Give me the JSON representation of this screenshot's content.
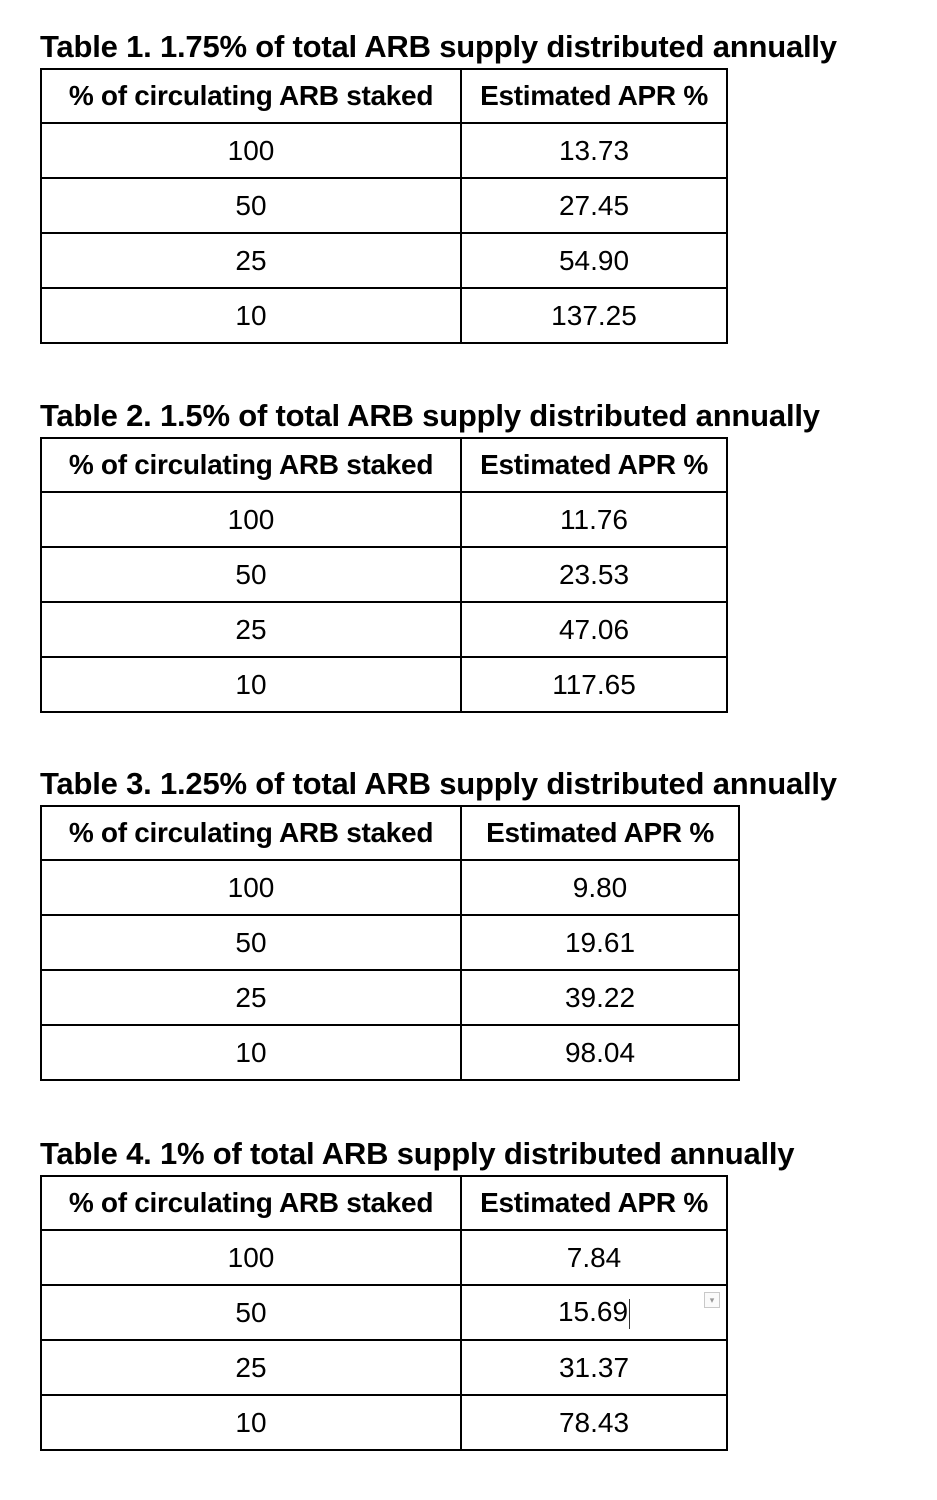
{
  "tables": [
    {
      "caption": "Table 1. 1.75% of total ARB supply distributed annually",
      "headers": [
        "% of circulating ARB staked",
        "Estimated APR %"
      ],
      "rows": [
        [
          "100",
          "13.73"
        ],
        [
          "50",
          "27.45"
        ],
        [
          "25",
          "54.90"
        ],
        [
          "10",
          "137.25"
        ]
      ]
    },
    {
      "caption": "Table 2. 1.5% of total ARB supply distributed annually",
      "headers": [
        "% of circulating ARB staked",
        "Estimated APR %"
      ],
      "rows": [
        [
          "100",
          "11.76"
        ],
        [
          "50",
          "23.53"
        ],
        [
          "25",
          "47.06"
        ],
        [
          "10",
          "117.65"
        ]
      ]
    },
    {
      "caption": "Table 3. 1.25% of total ARB supply distributed annually",
      "headers": [
        "% of circulating ARB staked",
        "Estimated APR %"
      ],
      "rows": [
        [
          "100",
          "9.80"
        ],
        [
          "50",
          "19.61"
        ],
        [
          "25",
          "39.22"
        ],
        [
          "10",
          "98.04"
        ]
      ]
    },
    {
      "caption": "Table 4. 1% of total ARB supply distributed annually",
      "headers": [
        "% of circulating ARB staked",
        "Estimated APR %"
      ],
      "rows": [
        [
          "100",
          "7.84"
        ],
        [
          "50",
          "15.69"
        ],
        [
          "25",
          "31.37"
        ],
        [
          "10",
          "78.43"
        ]
      ]
    }
  ],
  "icons": {
    "cell_menu_marker": "dropdown-chevron-icon"
  }
}
